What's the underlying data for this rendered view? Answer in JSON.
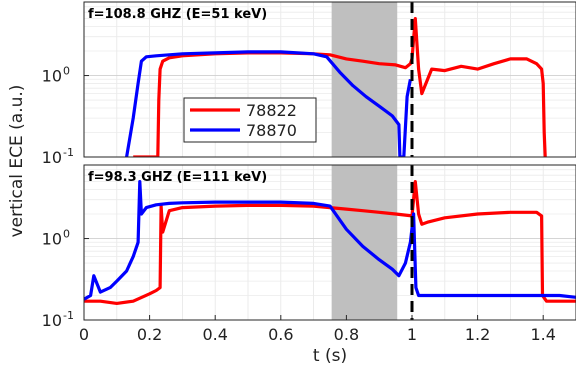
{
  "figure": {
    "ylabel": "vertical ECE (a.u.)",
    "xlabel": "t (s)"
  },
  "colors": {
    "red": "#ff0000",
    "blue": "#0000ff",
    "shade": "#bfbfbf",
    "dashed": "#000000"
  },
  "chart_data": [
    {
      "type": "line",
      "title": "f=108.8 GHZ (E=51 keV)",
      "xlabel": "t (s)",
      "ylabel": "vertical ECE (a.u.)",
      "xlim": [
        0,
        1.5
      ],
      "ylim": [
        0.1,
        8
      ],
      "yscale": "log",
      "yticks": [
        0.1,
        1
      ],
      "ytick_labels": [
        {
          "base": "10",
          "exp": "-1"
        },
        {
          "base": "10",
          "exp": "0"
        }
      ],
      "grid": true,
      "legend_position": "center-left",
      "shaded_region": [
        0.755,
        0.955
      ],
      "vline_dashed": 1.0,
      "series": [
        {
          "name": "78822",
          "color": "#ff0000",
          "x": [
            0.15,
            0.21,
            0.225,
            0.228,
            0.232,
            0.24,
            0.26,
            0.3,
            0.4,
            0.5,
            0.6,
            0.7,
            0.75,
            0.8,
            0.85,
            0.9,
            0.95,
            0.98,
            0.995,
            1.0,
            1.01,
            1.02,
            1.03,
            1.06,
            1.1,
            1.15,
            1.2,
            1.25,
            1.3,
            1.35,
            1.38,
            1.395,
            1.4,
            1.403,
            1.406
          ],
          "y": [
            0.1,
            0.1,
            0.1,
            0.5,
            1.2,
            1.5,
            1.65,
            1.75,
            1.85,
            1.9,
            1.9,
            1.85,
            1.8,
            1.6,
            1.5,
            1.4,
            1.35,
            1.25,
            1.4,
            1.6,
            5.0,
            1.2,
            0.6,
            1.2,
            1.15,
            1.3,
            1.2,
            1.4,
            1.6,
            1.6,
            1.4,
            1.2,
            0.8,
            0.2,
            0.1
          ]
        },
        {
          "name": "78870",
          "color": "#0000ff",
          "x": [
            0.13,
            0.15,
            0.165,
            0.175,
            0.19,
            0.22,
            0.26,
            0.3,
            0.4,
            0.5,
            0.6,
            0.7,
            0.74,
            0.78,
            0.82,
            0.86,
            0.9,
            0.94,
            0.96,
            0.963,
            0.975,
            0.985,
            0.995
          ],
          "y": [
            0.1,
            0.3,
            0.8,
            1.5,
            1.7,
            1.75,
            1.8,
            1.85,
            1.9,
            1.95,
            1.95,
            1.85,
            1.7,
            1.1,
            0.75,
            0.55,
            0.42,
            0.32,
            0.25,
            0.1,
            0.1,
            0.55,
            0.9
          ]
        }
      ]
    },
    {
      "type": "line",
      "title": "f=98.3 GHZ (E=111 keV)",
      "xlabel": "t (s)",
      "ylabel": "vertical ECE (a.u.)",
      "xlim": [
        0,
        1.5
      ],
      "ylim": [
        0.1,
        8
      ],
      "yscale": "log",
      "yticks": [
        0.1,
        1
      ],
      "ytick_labels": [
        {
          "base": "10",
          "exp": "-1"
        },
        {
          "base": "10",
          "exp": "0"
        }
      ],
      "xticks": [
        0,
        0.2,
        0.4,
        0.6,
        0.8,
        1,
        1.2,
        1.4
      ],
      "xtick_labels": [
        "0",
        "0.2",
        "0.4",
        "0.6",
        "0.8",
        "1",
        "1.2",
        "1.4"
      ],
      "grid": true,
      "shaded_region": [
        0.755,
        0.955
      ],
      "vline_dashed": 1.0,
      "series": [
        {
          "name": "78822",
          "color": "#ff0000",
          "x": [
            0.0,
            0.05,
            0.1,
            0.15,
            0.2,
            0.22,
            0.232,
            0.235,
            0.24,
            0.26,
            0.3,
            0.4,
            0.5,
            0.6,
            0.7,
            0.75,
            0.8,
            0.85,
            0.9,
            0.95,
            1.0,
            1.01,
            1.02,
            1.03,
            1.05,
            1.1,
            1.2,
            1.3,
            1.38,
            1.395,
            1.398,
            1.41,
            1.45,
            1.5
          ],
          "y": [
            0.17,
            0.17,
            0.16,
            0.17,
            0.21,
            0.23,
            0.25,
            2.5,
            1.2,
            2.2,
            2.4,
            2.5,
            2.55,
            2.55,
            2.5,
            2.4,
            2.3,
            2.2,
            2.1,
            2.0,
            1.9,
            5.0,
            2.0,
            1.5,
            1.6,
            1.8,
            2.0,
            2.1,
            2.1,
            1.9,
            0.2,
            0.17,
            0.17,
            0.17
          ]
        },
        {
          "name": "78870",
          "color": "#0000ff",
          "x": [
            0.0,
            0.02,
            0.03,
            0.05,
            0.08,
            0.1,
            0.13,
            0.15,
            0.165,
            0.17,
            0.175,
            0.19,
            0.22,
            0.26,
            0.3,
            0.4,
            0.5,
            0.6,
            0.7,
            0.75,
            0.8,
            0.85,
            0.9,
            0.94,
            0.96,
            0.98,
            0.995,
            1.005,
            1.012,
            1.02,
            1.05,
            1.1,
            1.2,
            1.3,
            1.4,
            1.45,
            1.5
          ],
          "y": [
            0.18,
            0.2,
            0.35,
            0.22,
            0.25,
            0.3,
            0.4,
            0.6,
            0.9,
            5.0,
            2.0,
            2.4,
            2.6,
            2.7,
            2.75,
            2.8,
            2.8,
            2.8,
            2.7,
            2.5,
            1.3,
            0.8,
            0.55,
            0.42,
            0.35,
            0.5,
            0.9,
            2.0,
            0.25,
            0.2,
            0.2,
            0.2,
            0.2,
            0.2,
            0.2,
            0.2,
            0.19
          ]
        }
      ]
    }
  ]
}
